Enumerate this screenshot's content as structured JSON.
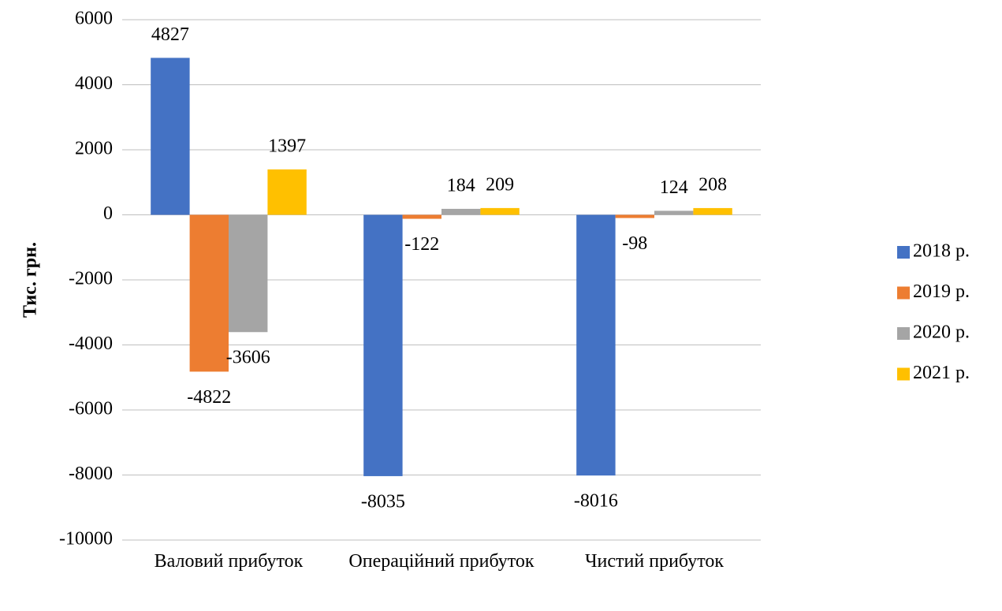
{
  "chart_data": {
    "type": "bar",
    "y_label": "Тис. грн.",
    "categories": [
      "Валовий прибуток",
      "Операційний прибуток",
      "Чистий прибуток"
    ],
    "series": [
      {
        "name": "2018 р.",
        "color": "#4472c4",
        "values": [
          4827,
          -8035,
          -8016
        ]
      },
      {
        "name": "2019 р.",
        "color": "#ed7d31",
        "values": [
          -4822,
          -122,
          -98
        ]
      },
      {
        "name": "2020 р.",
        "color": "#a5a5a5",
        "values": [
          -3606,
          184,
          124
        ]
      },
      {
        "name": "2021 р.",
        "color": "#ffc000",
        "values": [
          1397,
          209,
          208
        ]
      }
    ],
    "ylim": [
      -10000,
      6000
    ],
    "yticks": [
      -10000,
      -8000,
      -6000,
      -4000,
      -2000,
      0,
      2000,
      4000,
      6000
    ],
    "grid": true,
    "legend": "right"
  }
}
